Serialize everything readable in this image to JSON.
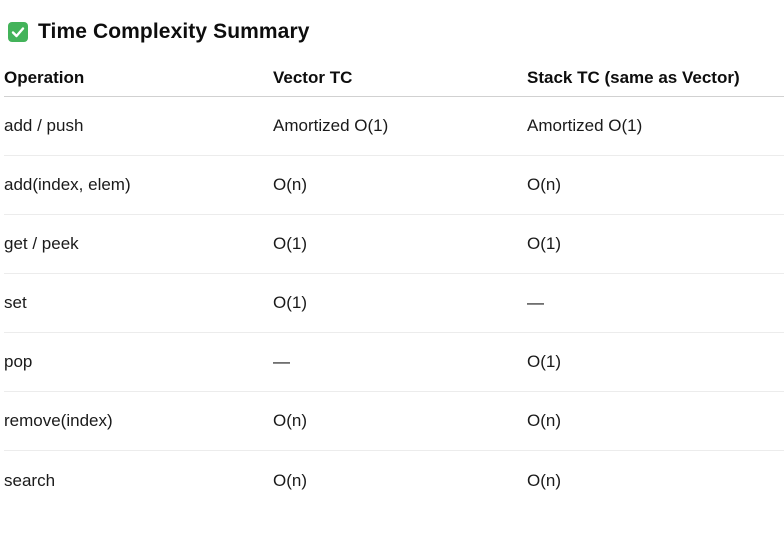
{
  "heading": {
    "icon": "check-mark-button-icon",
    "icon_color": "#3fb950",
    "title": "Time Complexity Summary"
  },
  "table": {
    "columns": [
      "Operation",
      "Vector TC",
      "Stack TC (same as Vector)"
    ],
    "rows": [
      [
        "add / push",
        "Amortized O(1)",
        "Amortized O(1)"
      ],
      [
        "add(index, elem)",
        "O(n)",
        "O(n)"
      ],
      [
        "get / peek",
        "O(1)",
        "O(1)"
      ],
      [
        "set",
        "O(1)",
        "—"
      ],
      [
        "pop",
        "—",
        "O(1)"
      ],
      [
        "remove(index)",
        "O(n)",
        "O(n)"
      ],
      [
        "search",
        "O(n)",
        "O(n)"
      ]
    ]
  }
}
